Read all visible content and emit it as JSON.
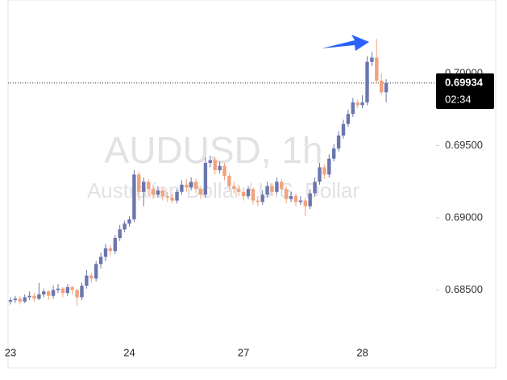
{
  "chart_data": {
    "type": "candlestick",
    "watermark_title": "AUDUSD, 1h",
    "watermark_subtitle": "Australian Dollar / U.S. Dollar",
    "categories": [
      "23",
      null,
      null,
      null,
      null,
      null,
      null,
      null,
      null,
      null,
      null,
      null,
      null,
      null,
      null,
      null,
      null,
      null,
      null,
      null,
      null,
      null,
      null,
      null,
      null,
      "24",
      null,
      null,
      null,
      null,
      null,
      null,
      null,
      null,
      null,
      null,
      null,
      null,
      null,
      null,
      null,
      null,
      null,
      null,
      null,
      null,
      null,
      null,
      null,
      "27",
      null,
      null,
      null,
      null,
      null,
      null,
      null,
      null,
      null,
      null,
      null,
      null,
      null,
      null,
      null,
      null,
      null,
      null,
      null,
      null,
      null,
      null,
      null,
      null,
      "28",
      null,
      null,
      null,
      null,
      null
    ],
    "open": [
      0.6842,
      0.6843,
      0.6844,
      0.6842,
      0.6845,
      0.6846,
      0.6844,
      0.6847,
      0.6849,
      0.6846,
      0.685,
      0.6851,
      0.6848,
      0.6852,
      0.685,
      0.6845,
      0.6853,
      0.686,
      0.6858,
      0.6868,
      0.6873,
      0.6879,
      0.6877,
      0.6886,
      0.6892,
      0.6896,
      0.6899,
      0.693,
      0.6918,
      0.6925,
      0.692,
      0.6916,
      0.6919,
      0.6915,
      0.6914,
      0.6912,
      0.6918,
      0.6923,
      0.6921,
      0.6925,
      0.692,
      0.6916,
      0.6938,
      0.694,
      0.6933,
      0.6936,
      0.6929,
      0.6922,
      0.692,
      0.6918,
      0.6915,
      0.692,
      0.6912,
      0.6911,
      0.6916,
      0.6922,
      0.6918,
      0.6925,
      0.692,
      0.6913,
      0.6915,
      0.6911,
      0.6912,
      0.6908,
      0.6917,
      0.6925,
      0.6935,
      0.693,
      0.6941,
      0.6948,
      0.6957,
      0.6965,
      0.6972,
      0.698,
      0.6978,
      0.698,
      0.7008,
      0.7011,
      0.6995,
      0.6987
    ],
    "high": [
      0.6845,
      0.6846,
      0.6846,
      0.6847,
      0.6849,
      0.6848,
      0.6855,
      0.6851,
      0.685,
      0.6853,
      0.6854,
      0.6852,
      0.6854,
      0.6853,
      0.6851,
      0.6855,
      0.6864,
      0.6862,
      0.687,
      0.6876,
      0.6882,
      0.6881,
      0.6888,
      0.6895,
      0.6898,
      0.6901,
      0.6933,
      0.6932,
      0.6928,
      0.6927,
      0.6923,
      0.6922,
      0.6921,
      0.6918,
      0.6917,
      0.692,
      0.6926,
      0.6927,
      0.6928,
      0.6927,
      0.6922,
      0.6942,
      0.6943,
      0.6942,
      0.6939,
      0.6938,
      0.6931,
      0.6925,
      0.6923,
      0.6921,
      0.6922,
      0.6921,
      0.6915,
      0.6919,
      0.6925,
      0.6924,
      0.6928,
      0.6927,
      0.6922,
      0.6918,
      0.6917,
      0.6915,
      0.6914,
      0.692,
      0.6928,
      0.6938,
      0.6937,
      0.6944,
      0.6951,
      0.696,
      0.6968,
      0.6975,
      0.6983,
      0.6982,
      0.6985,
      0.7012,
      0.7015,
      0.7024,
      0.7,
      0.6996
    ],
    "low": [
      0.684,
      0.6841,
      0.684,
      0.6841,
      0.6843,
      0.6842,
      0.6843,
      0.6845,
      0.6843,
      0.6844,
      0.6848,
      0.6845,
      0.6846,
      0.6847,
      0.6839,
      0.6843,
      0.6851,
      0.6855,
      0.6856,
      0.6865,
      0.687,
      0.6874,
      0.6875,
      0.6884,
      0.689,
      0.6894,
      0.6897,
      0.6912,
      0.6908,
      0.6915,
      0.6913,
      0.6914,
      0.6912,
      0.6911,
      0.691,
      0.691,
      0.6916,
      0.6918,
      0.6919,
      0.6917,
      0.6913,
      0.6914,
      0.6935,
      0.693,
      0.6931,
      0.6926,
      0.6919,
      0.6917,
      0.6915,
      0.6912,
      0.6913,
      0.6909,
      0.6908,
      0.6909,
      0.6914,
      0.6915,
      0.6916,
      0.6917,
      0.691,
      0.6911,
      0.6908,
      0.6909,
      0.6901,
      0.6906,
      0.6915,
      0.6923,
      0.6927,
      0.6928,
      0.6939,
      0.6946,
      0.6955,
      0.6963,
      0.697,
      0.6976,
      0.6976,
      0.6978,
      0.7005,
      0.6993,
      0.6985,
      0.698
    ],
    "close": [
      0.6843,
      0.6844,
      0.6842,
      0.6845,
      0.6846,
      0.6844,
      0.6847,
      0.6849,
      0.6846,
      0.685,
      0.6851,
      0.6848,
      0.6852,
      0.685,
      0.6845,
      0.6853,
      0.686,
      0.6858,
      0.6868,
      0.6873,
      0.6879,
      0.6877,
      0.6886,
      0.6892,
      0.6896,
      0.6899,
      0.693,
      0.6918,
      0.6925,
      0.692,
      0.6916,
      0.6919,
      0.6915,
      0.6914,
      0.6912,
      0.6918,
      0.6923,
      0.6921,
      0.6925,
      0.692,
      0.6916,
      0.6938,
      0.694,
      0.6933,
      0.6936,
      0.6929,
      0.6922,
      0.692,
      0.6918,
      0.6915,
      0.692,
      0.6912,
      0.6911,
      0.6916,
      0.6922,
      0.6918,
      0.6925,
      0.692,
      0.6913,
      0.6915,
      0.6911,
      0.6912,
      0.6908,
      0.6917,
      0.6925,
      0.6935,
      0.693,
      0.6941,
      0.6948,
      0.6957,
      0.6965,
      0.6972,
      0.698,
      0.6978,
      0.698,
      0.7008,
      0.7011,
      0.6995,
      0.6987,
      0.69934
    ],
    "up_color": "#6a76ad",
    "down_color": "#f2a27e",
    "ylim": [
      0.68134,
      0.70453
    ],
    "yticks": [
      {
        "value": 0.685,
        "label": "0.68500"
      },
      {
        "value": 0.69,
        "label": "0.69000"
      },
      {
        "value": 0.695,
        "label": "0.69500"
      },
      {
        "value": 0.7,
        "label": "0.70000"
      }
    ],
    "last_price": 0.69934,
    "countdown": "02:34"
  }
}
